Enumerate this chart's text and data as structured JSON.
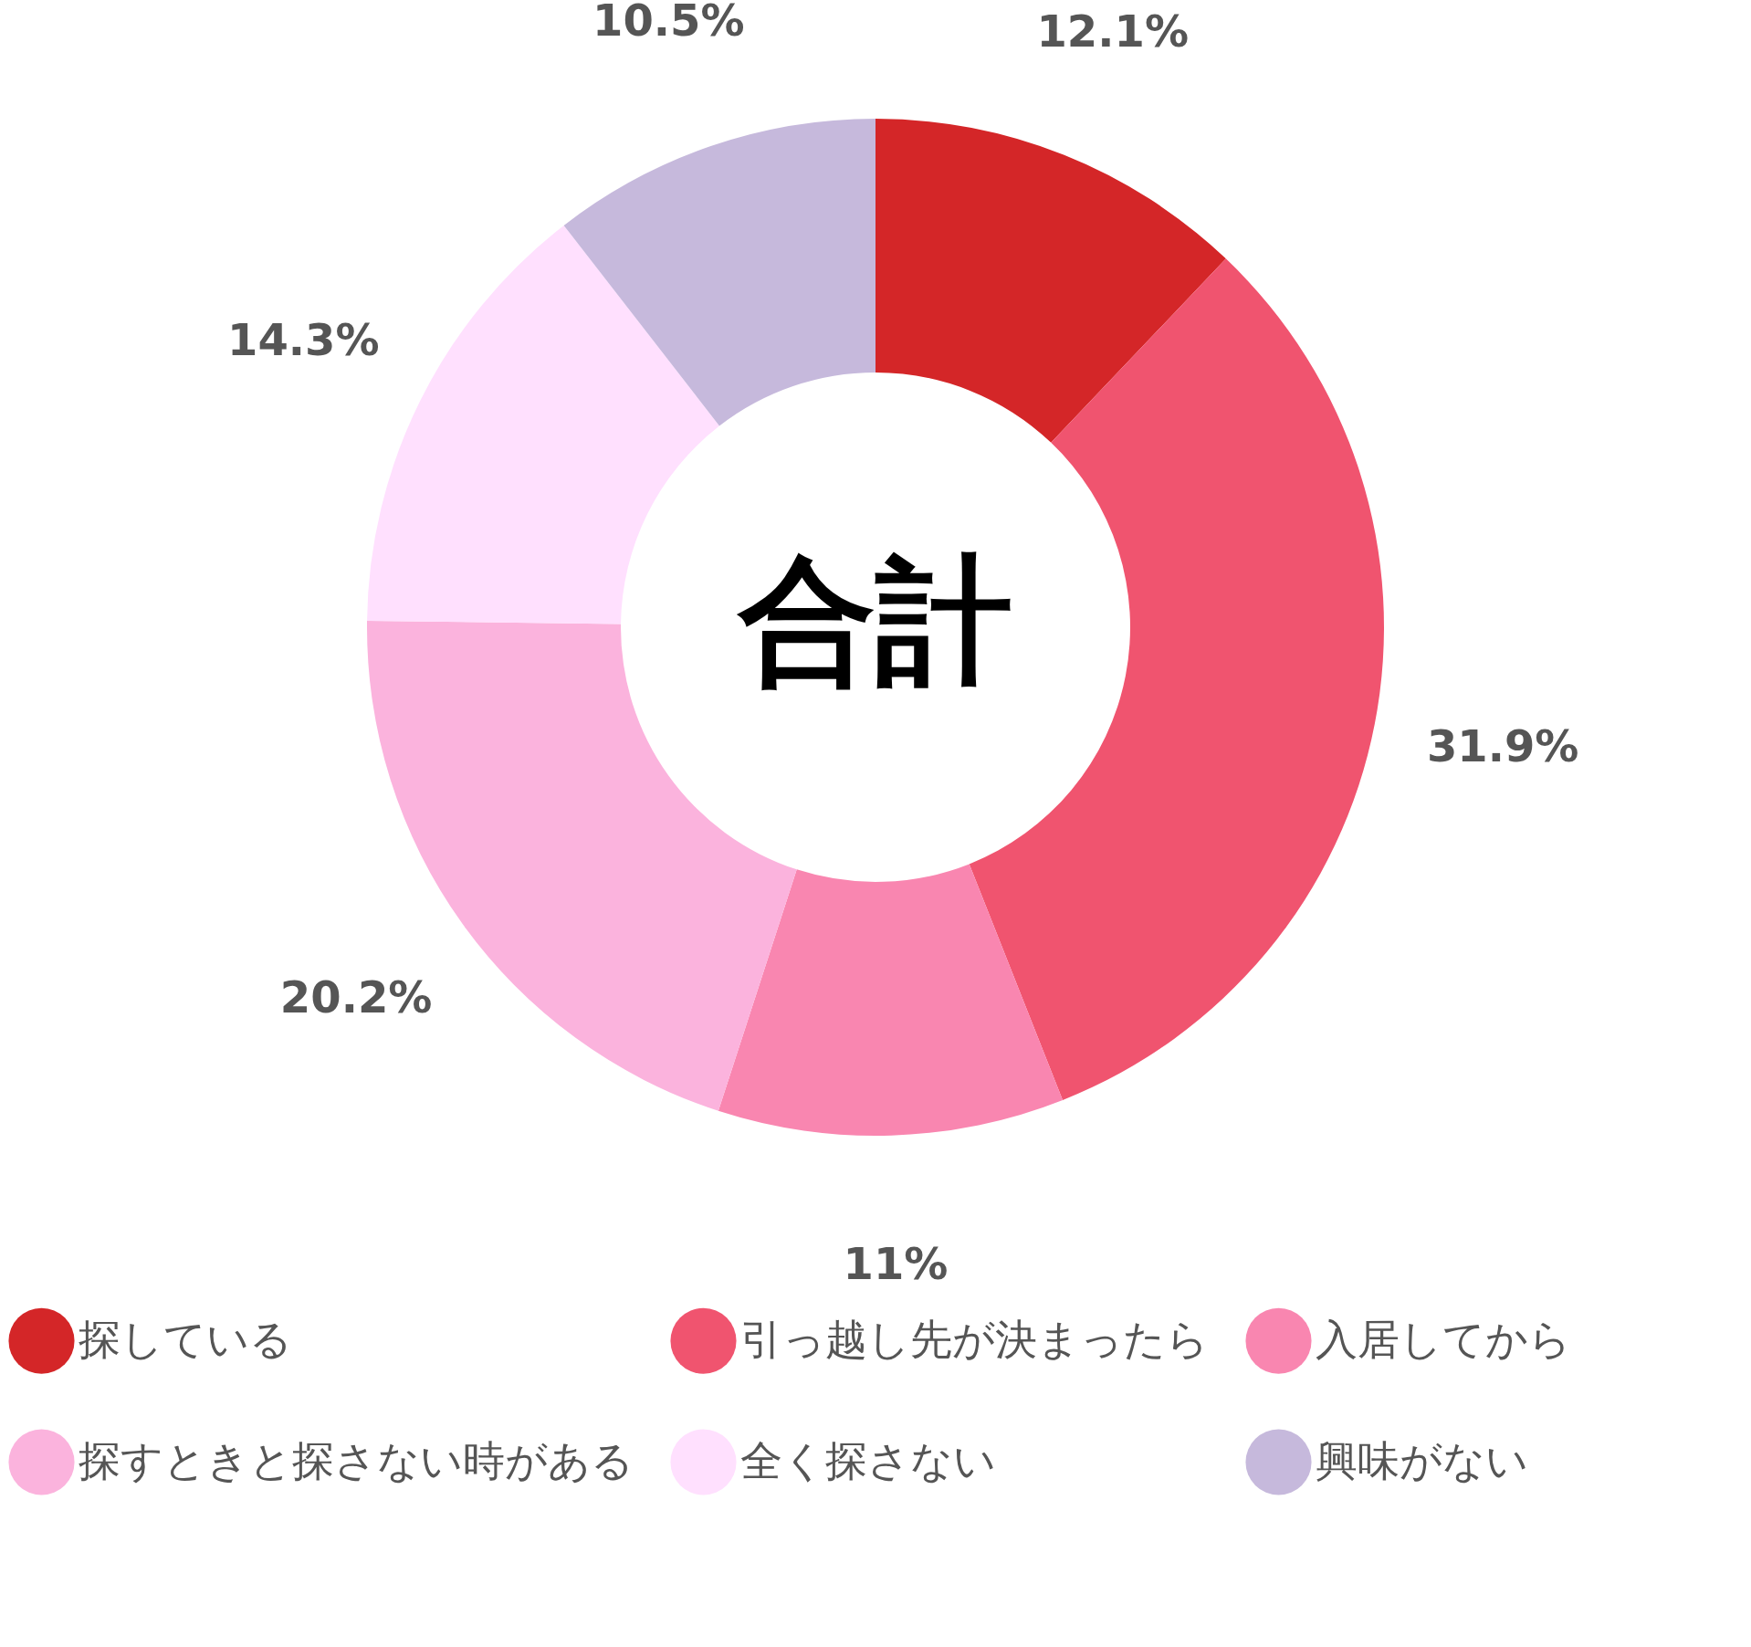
{
  "chart_data": {
    "type": "donut",
    "title": "合計",
    "categories": [
      "探している",
      "引っ越し先が決まったら",
      "入居してから",
      "探すときと探さない時がある",
      "全く探さない",
      "興味がない"
    ],
    "values": [
      12.1,
      31.9,
      11,
      20.2,
      14.3,
      10.5
    ],
    "value_labels": [
      "12.1%",
      "31.9%",
      "11%",
      "20.2%",
      "14.3%",
      "10.5%"
    ],
    "colors": [
      "#d42628",
      "#f0546f",
      "#f986b0",
      "#fbb3dd",
      "#ffe0fe",
      "#c6b9dc"
    ],
    "legend": "bottom"
  }
}
